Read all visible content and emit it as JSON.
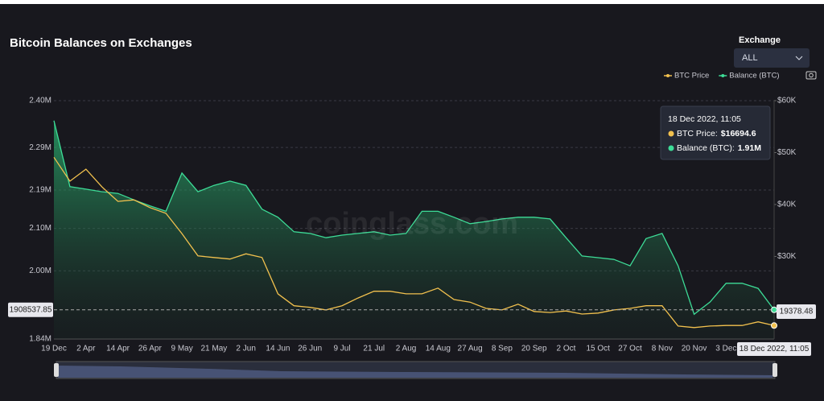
{
  "header": {
    "title": "Bitcoin Balances on Exchanges",
    "filter_label": "Exchange",
    "filter_value": "ALL"
  },
  "watermark": "coinglass.com",
  "chart_data": {
    "type": "line",
    "categories": [
      "19 Dec",
      null,
      "2 Apr",
      null,
      "14 Apr",
      null,
      "26 Apr",
      null,
      "9 May",
      null,
      "21 May",
      null,
      "2 Jun",
      null,
      "14 Jun",
      null,
      "26 Jun",
      null,
      "9 Jul",
      null,
      "21 Jul",
      null,
      "2 Aug",
      null,
      "14 Aug",
      null,
      "27 Aug",
      null,
      "8 Sep",
      null,
      "20 Sep",
      null,
      "2 Oct",
      null,
      "15 Oct",
      null,
      "27 Oct",
      null,
      "8 Nov",
      null,
      "20 Nov",
      null,
      "3 Dec",
      null,
      null,
      "18 Dec 2022, 11:05"
    ],
    "series": [
      {
        "name": "BTC Price",
        "color": "#f2c14e",
        "axis": "y2",
        "values": [
          49100,
          44500,
          46800,
          43400,
          40600,
          40900,
          39400,
          38300,
          34400,
          30100,
          29800,
          29500,
          30500,
          29800,
          22800,
          20500,
          20200,
          19700,
          20500,
          22000,
          23300,
          23300,
          22800,
          22800,
          23900,
          21700,
          21200,
          20000,
          19700,
          20800,
          19400,
          19200,
          19500,
          18900,
          19100,
          19700,
          20000,
          20500,
          20500,
          16600,
          16300,
          16600,
          16700,
          16700,
          17400,
          16694.6
        ]
      },
      {
        "name": "Balance (BTC)",
        "color": "#3ddc97",
        "area": true,
        "values": [
          2353000,
          2198000,
          2192000,
          2186000,
          2182000,
          2167000,
          2153000,
          2140000,
          2230000,
          2186000,
          2201000,
          2211000,
          2201000,
          2145000,
          2126000,
          2092000,
          2088000,
          2078000,
          2084000,
          2088000,
          2092000,
          2084000,
          2088000,
          2140000,
          2140000,
          2126000,
          2111000,
          2116000,
          2122000,
          2126000,
          2126000,
          2122000,
          2078000,
          2035000,
          2031000,
          2027000,
          2012000,
          2076000,
          2088000,
          2012000,
          1898000,
          1927000,
          1971000,
          1971000,
          1959000,
          1908537.85
        ]
      }
    ],
    "ylim": [
      1840000,
      2400000
    ],
    "yticks": [
      {
        "value": 2400000,
        "label": "2.40M"
      },
      {
        "value": 2290000,
        "label": "2.29M"
      },
      {
        "value": 2190000,
        "label": "2.19M"
      },
      {
        "value": 2100000,
        "label": "2.10M"
      },
      {
        "value": 2000000,
        "label": "2.00M"
      },
      {
        "value": 1840000,
        "label": "1.84M"
      }
    ],
    "y2lim": [
      14100,
      60000
    ],
    "y2ticks": [
      {
        "value": 60000,
        "label": "$60K"
      },
      {
        "value": 50000,
        "label": "$50K"
      },
      {
        "value": 40000,
        "label": "$40K"
      },
      {
        "value": 30000,
        "label": "$30K"
      }
    ],
    "grid": true,
    "legend": "top-right",
    "crosshair": {
      "y": 1908537.85,
      "y2": 19378.48
    },
    "tooltip": {
      "title": "18 Dec 2022, 11:05",
      "items": [
        {
          "label": "BTC Price:",
          "value": "$16694.6"
        },
        {
          "label": "Balance (BTC):",
          "value": "1.91M"
        }
      ]
    }
  }
}
